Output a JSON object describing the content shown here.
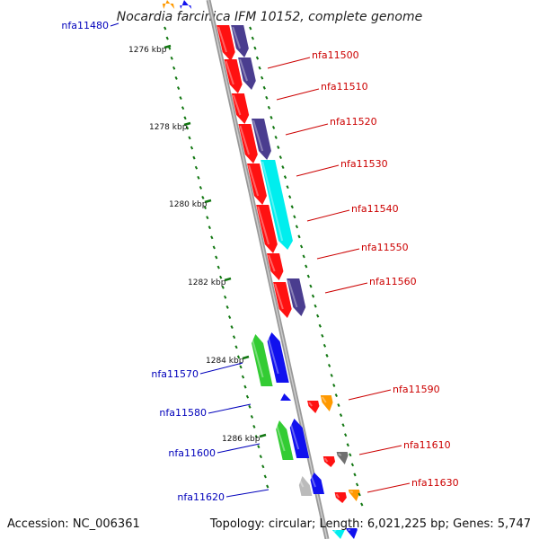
{
  "title": "Nocardia farcinica IFM 10152, complete genome",
  "footer": {
    "accession": "Accession: NC_006361",
    "stats": "Topology: circular; Length: 6,021,225 bp; Genes: 5,747"
  },
  "colors": {
    "forward_label": "#cc0000",
    "reverse_label": "#0000bb",
    "backbone": "#888888",
    "tick": "#117711",
    "red": "#ff1111",
    "purple": "#4a3d8f",
    "cyan": "#00eeee",
    "green": "#33cc33",
    "blue": "#1111ee",
    "orange": "#ff9900",
    "gray": "#707070",
    "lightgray": "#bbbbbb"
  },
  "scale_labels": [
    "1276 kbp",
    "1278 kbp",
    "1280 kbp",
    "1282 kbp",
    "1284 kbp",
    "1286 kbp"
  ],
  "forward_labels": [
    "nfa11500",
    "nfa11510",
    "nfa11520",
    "nfa11530",
    "nfa11540",
    "nfa11550",
    "nfa11560",
    "nfa11590",
    "nfa11610",
    "nfa11630"
  ],
  "reverse_labels": [
    "nfa11480",
    "nfa11570",
    "nfa11580",
    "nfa11600",
    "nfa11620"
  ]
}
